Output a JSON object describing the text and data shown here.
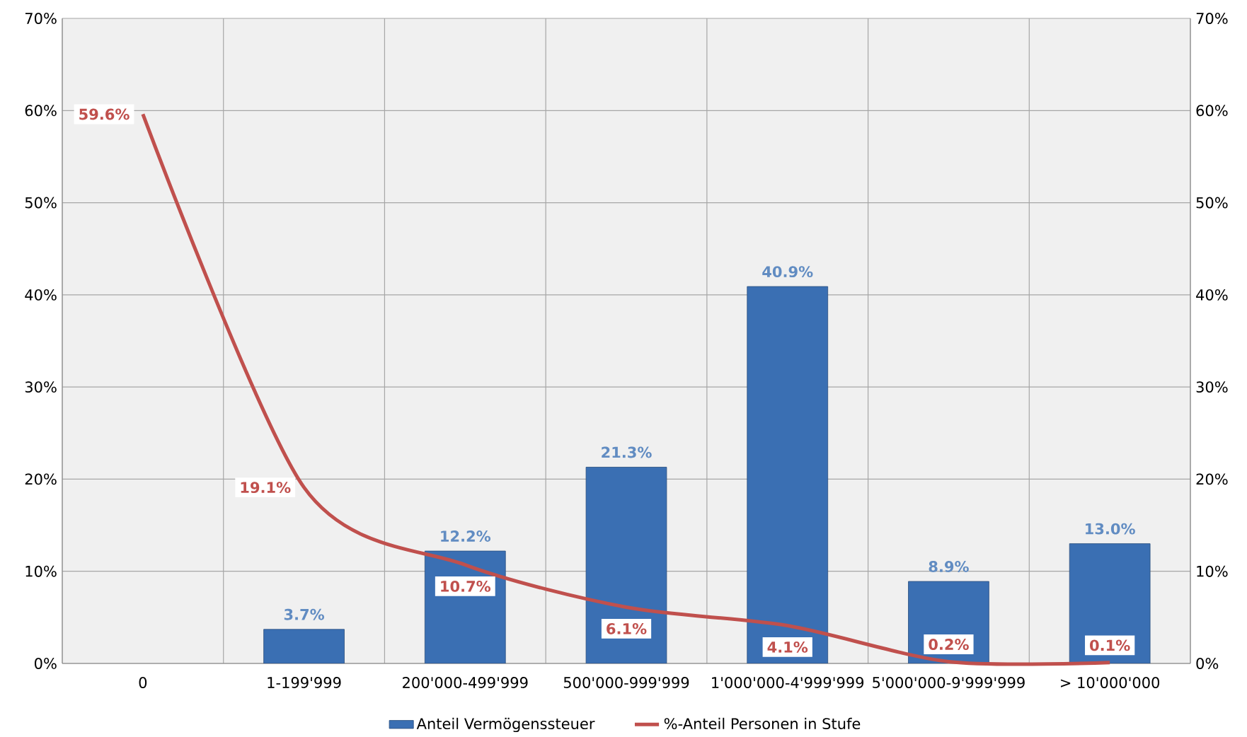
{
  "chart_data": {
    "type": "bar",
    "categories": [
      "0",
      "1-199'999",
      "200'000-499'999",
      "500'000-999'999",
      "1'000'000-4'999'999",
      "5'000'000-9'999'999",
      "> 10'000'000"
    ],
    "series": [
      {
        "name": "Anteil Vermögenssteuer",
        "color": "#3a6fb3",
        "values": [
          null,
          3.7,
          12.2,
          21.3,
          40.9,
          8.9,
          13.0
        ],
        "value_labels": [
          null,
          "3.7%",
          "12.2%",
          "21.3%",
          "40.9%",
          "8.9%",
          "13.0%"
        ]
      },
      {
        "name": "%-Anteil Personen in Stufe",
        "type": "line",
        "axis": "y2",
        "color": "#c0504d",
        "values": [
          59.6,
          19.1,
          10.7,
          6.1,
          4.1,
          0.2,
          0.1
        ],
        "value_labels": [
          "59.6%",
          "19.1%",
          "10.7%",
          "6.1%",
          "4.1%",
          "0.2%",
          "0.1%"
        ]
      }
    ],
    "ylim": [
      0,
      70
    ],
    "yticks": [
      {
        "value": 0,
        "label": "0%"
      },
      {
        "value": 10,
        "label": "10%"
      },
      {
        "value": 20,
        "label": "20%"
      },
      {
        "value": 30,
        "label": "30%"
      },
      {
        "value": 40,
        "label": "40%"
      },
      {
        "value": 50,
        "label": "50%"
      },
      {
        "value": 60,
        "label": "60%"
      },
      {
        "value": 70,
        "label": "70%"
      }
    ],
    "y2lim": [
      0,
      70
    ],
    "y2ticks": [
      {
        "value": 0,
        "label": "0%"
      },
      {
        "value": 10,
        "label": "10%"
      },
      {
        "value": 20,
        "label": "20%"
      },
      {
        "value": 30,
        "label": "30%"
      },
      {
        "value": 40,
        "label": "40%"
      },
      {
        "value": 50,
        "label": "50%"
      },
      {
        "value": 60,
        "label": "60%"
      },
      {
        "value": 70,
        "label": "70%"
      }
    ],
    "grid": true,
    "legend": "bottom",
    "marker": "none",
    "line_style": "solid"
  }
}
